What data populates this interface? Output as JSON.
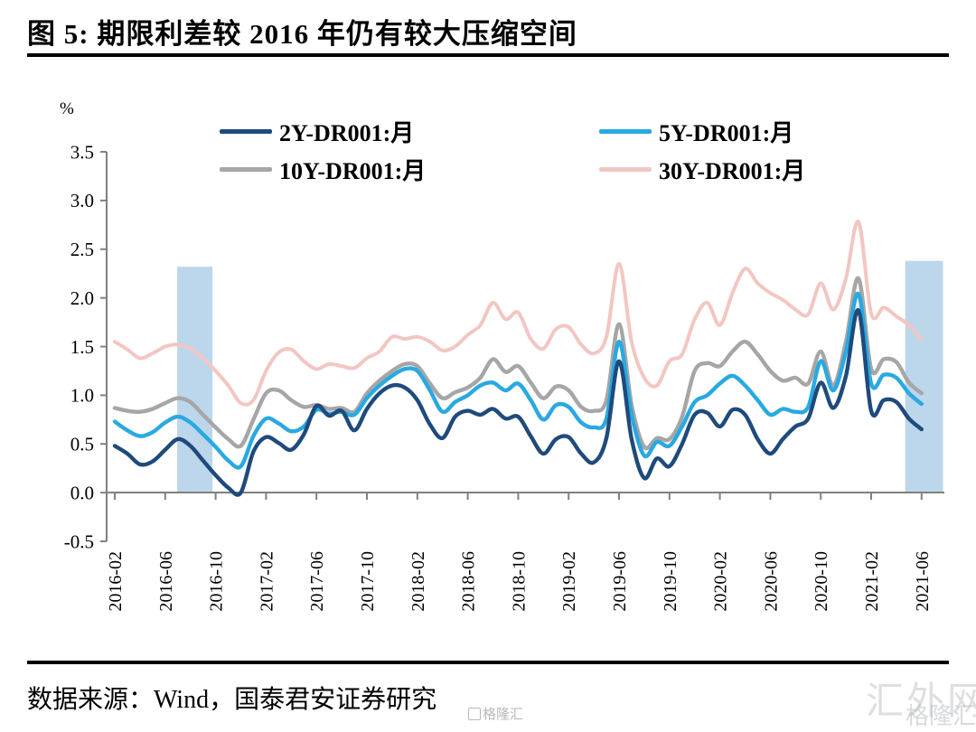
{
  "title": "图 5:  期限利差较 2016 年仍有较大压缩空间",
  "footer": {
    "source_text": "数据来源：Wind，国泰君安证券研究"
  },
  "watermarks": {
    "corner_large": "汇外网",
    "corner_small": "格隆汇",
    "center_small": "格隆汇"
  },
  "chart_data": {
    "type": "line",
    "title": "期限利差较 2016 年仍有较大压缩空间",
    "ylabel": "%",
    "ylim": [
      -0.5,
      3.5
    ],
    "yticks": [
      3.5,
      3.0,
      2.5,
      2.0,
      1.5,
      1.0,
      0.5,
      0.0,
      -0.5
    ],
    "grid": false,
    "legend_position": "top",
    "x_start": "2016-02",
    "x_freq": "monthly",
    "n_points": 65,
    "xtick_labels": [
      "2016-02",
      "2016-06",
      "2016-10",
      "2017-02",
      "2017-06",
      "2017-10",
      "2018-02",
      "2018-06",
      "2018-10",
      "2019-02",
      "2019-06",
      "2019-10",
      "2020-02",
      "2020-06",
      "2020-10",
      "2021-02",
      "2021-06"
    ],
    "xtick_every_months": 4,
    "highlight_bands": [
      {
        "from_index": 4.95,
        "to_index": 7.75,
        "top_value": 2.32,
        "color": "#BCD6EC"
      },
      {
        "from_index": 62.7,
        "to_index": 65.7,
        "top_value": 2.38,
        "color": "#BCD6EC"
      }
    ],
    "series": [
      {
        "name": "2Y-DR001:月",
        "color": "#1F4A7C",
        "width": 4.4,
        "values": [
          0.48,
          0.4,
          0.29,
          0.32,
          0.44,
          0.55,
          0.48,
          0.33,
          0.18,
          0.05,
          0.0,
          0.42,
          0.57,
          0.51,
          0.44,
          0.6,
          0.89,
          0.79,
          0.84,
          0.64,
          0.86,
          1.02,
          1.1,
          1.08,
          0.95,
          0.7,
          0.56,
          0.78,
          0.84,
          0.8,
          0.86,
          0.76,
          0.78,
          0.58,
          0.4,
          0.55,
          0.57,
          0.4,
          0.31,
          0.56,
          1.35,
          0.55,
          0.15,
          0.35,
          0.27,
          0.5,
          0.8,
          0.82,
          0.68,
          0.85,
          0.8,
          0.55,
          0.4,
          0.55,
          0.68,
          0.76,
          1.13,
          0.87,
          1.2,
          1.87,
          0.84,
          0.95,
          0.93,
          0.76,
          0.65
        ]
      },
      {
        "name": "5Y-DR001:月",
        "color": "#29A9E1",
        "width": 4.4,
        "values": [
          0.73,
          0.64,
          0.58,
          0.62,
          0.72,
          0.78,
          0.72,
          0.6,
          0.47,
          0.33,
          0.27,
          0.58,
          0.76,
          0.71,
          0.63,
          0.68,
          0.85,
          0.81,
          0.83,
          0.8,
          0.97,
          1.1,
          1.2,
          1.27,
          1.25,
          1.05,
          0.83,
          0.93,
          1.0,
          1.1,
          1.13,
          1.05,
          1.12,
          0.95,
          0.75,
          0.9,
          0.88,
          0.72,
          0.67,
          0.76,
          1.55,
          0.8,
          0.38,
          0.52,
          0.48,
          0.68,
          0.93,
          1.0,
          1.12,
          1.2,
          1.1,
          0.95,
          0.8,
          0.86,
          0.83,
          0.88,
          1.35,
          1.05,
          1.45,
          2.04,
          1.12,
          1.21,
          1.18,
          1.02,
          0.91
        ]
      },
      {
        "name": "10Y-DR001:月",
        "color": "#A6A6A6",
        "width": 4.4,
        "values": [
          0.87,
          0.84,
          0.83,
          0.86,
          0.92,
          0.97,
          0.93,
          0.8,
          0.67,
          0.55,
          0.48,
          0.75,
          1.02,
          1.05,
          0.95,
          0.88,
          0.9,
          0.86,
          0.87,
          0.83,
          1.02,
          1.15,
          1.25,
          1.32,
          1.3,
          1.12,
          0.97,
          1.03,
          1.08,
          1.18,
          1.37,
          1.24,
          1.3,
          1.13,
          0.97,
          1.09,
          1.05,
          0.88,
          0.84,
          0.95,
          1.73,
          0.9,
          0.47,
          0.56,
          0.55,
          0.78,
          1.25,
          1.33,
          1.3,
          1.45,
          1.55,
          1.42,
          1.25,
          1.15,
          1.18,
          1.12,
          1.45,
          1.1,
          1.55,
          2.2,
          1.27,
          1.37,
          1.34,
          1.13,
          1.02
        ]
      },
      {
        "name": "30Y-DR001:月",
        "color": "#F2C6C2",
        "width": 4.0,
        "values": [
          1.55,
          1.47,
          1.38,
          1.43,
          1.5,
          1.52,
          1.48,
          1.38,
          1.25,
          1.1,
          0.92,
          0.95,
          1.25,
          1.44,
          1.47,
          1.35,
          1.27,
          1.32,
          1.3,
          1.28,
          1.38,
          1.45,
          1.6,
          1.58,
          1.6,
          1.55,
          1.46,
          1.5,
          1.62,
          1.72,
          1.95,
          1.78,
          1.85,
          1.58,
          1.48,
          1.68,
          1.7,
          1.52,
          1.43,
          1.6,
          2.35,
          1.55,
          1.18,
          1.1,
          1.35,
          1.42,
          1.78,
          1.95,
          1.72,
          2.05,
          2.3,
          2.15,
          2.05,
          1.98,
          1.88,
          1.83,
          2.15,
          1.88,
          2.2,
          2.78,
          1.84,
          1.9,
          1.81,
          1.72,
          1.57
        ]
      }
    ]
  }
}
